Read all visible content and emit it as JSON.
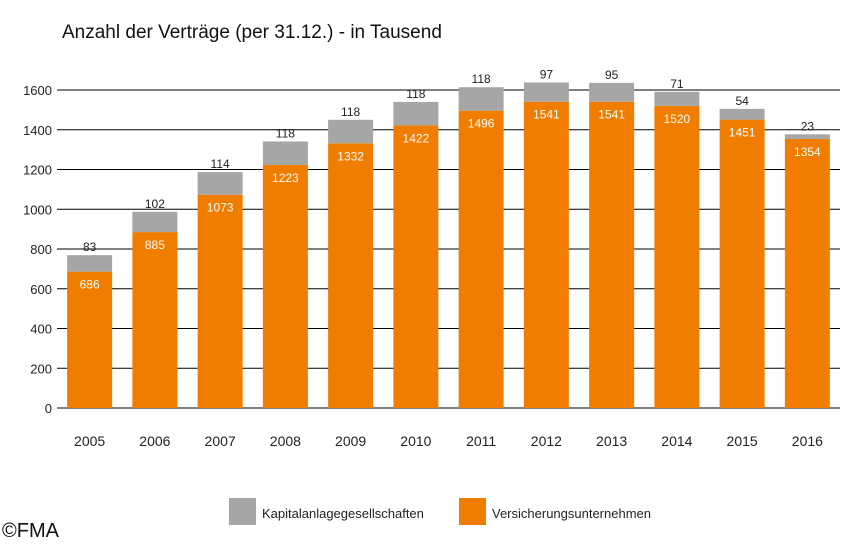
{
  "chart_data": {
    "type": "bar",
    "stacked": true,
    "title": "Anzahl der Verträge (per 31.12.) - in Tausend",
    "categories": [
      "2005",
      "2006",
      "2007",
      "2008",
      "2009",
      "2010",
      "2011",
      "2012",
      "2013",
      "2014",
      "2015",
      "2016"
    ],
    "series": [
      {
        "name": "Versicherungsunternehmen",
        "color": "#f07d00",
        "values": [
          686,
          885,
          1073,
          1223,
          1332,
          1422,
          1496,
          1541,
          1541,
          1520,
          1451,
          1354
        ]
      },
      {
        "name": "Kapitalanlagegesellschaften",
        "color": "#a6a6a6",
        "values": [
          83,
          102,
          114,
          118,
          118,
          118,
          118,
          97,
          95,
          71,
          54,
          23
        ]
      }
    ],
    "ylim": [
      0,
      1600
    ],
    "yticks": [
      0,
      200,
      400,
      600,
      800,
      1000,
      1200,
      1400,
      1600
    ],
    "legend": "bottom",
    "grid": true
  },
  "legend_items": [
    "Kapitalanlagegesellschaften",
    "Versicherungsunternehmen"
  ],
  "copyright": "©FMA"
}
